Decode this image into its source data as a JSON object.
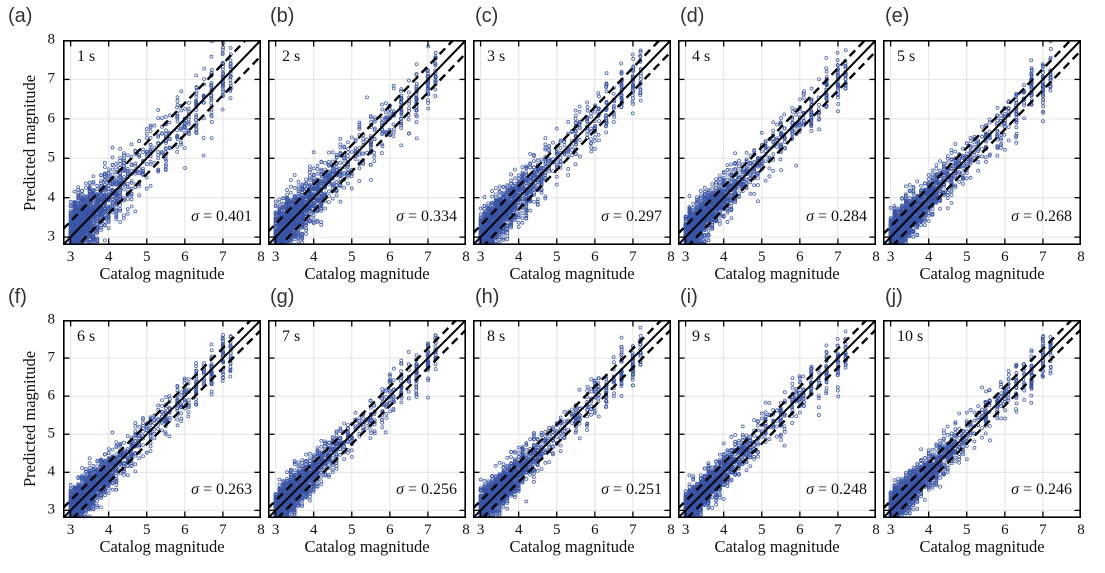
{
  "figure": {
    "background": "#ffffff",
    "description": "Predicted vs catalog magnitude scatter panels for time windows 1-10 s"
  },
  "chart_data": {
    "type": "scatter",
    "title": "",
    "xlabel": "Catalog magnitude",
    "ylabel": "Predicted magnitude",
    "xlim": [
      2.8,
      8
    ],
    "ylim": [
      2.8,
      8
    ],
    "tick_values": [
      3,
      4,
      5,
      6,
      7,
      8
    ],
    "tick_labels": [
      "3",
      "4",
      "5",
      "6",
      "7",
      "8"
    ],
    "grid": true,
    "sigma_symbol": "σ",
    "reference_lines": "solid y = x; dashed y = x ± σ",
    "colors": {
      "marker": "#3a55a6",
      "line": "#000000",
      "grid": "#e2e2e2",
      "box": "#000000",
      "text": "#111111"
    },
    "panels": [
      {
        "letter": "(a)",
        "time_label": "1 s",
        "sigma": 0.401,
        "sigma_text": " = 0.401"
      },
      {
        "letter": "(b)",
        "time_label": "2 s",
        "sigma": 0.334,
        "sigma_text": " = 0.334"
      },
      {
        "letter": "(c)",
        "time_label": "3 s",
        "sigma": 0.297,
        "sigma_text": " = 0.297"
      },
      {
        "letter": "(d)",
        "time_label": "4 s",
        "sigma": 0.284,
        "sigma_text": " = 0.284"
      },
      {
        "letter": "(e)",
        "time_label": "5 s",
        "sigma": 0.268,
        "sigma_text": " = 0.268"
      },
      {
        "letter": "(f)",
        "time_label": "6 s",
        "sigma": 0.263,
        "sigma_text": " = 0.263"
      },
      {
        "letter": "(g)",
        "time_label": "7 s",
        "sigma": 0.256,
        "sigma_text": " = 0.256"
      },
      {
        "letter": "(h)",
        "time_label": "8 s",
        "sigma": 0.251,
        "sigma_text": " = 0.251"
      },
      {
        "letter": "(i)",
        "time_label": "9 s",
        "sigma": 0.248,
        "sigma_text": " = 0.248"
      },
      {
        "letter": "(j)",
        "time_label": "10 s",
        "sigma": 0.246,
        "sigma_text": " = 0.246"
      }
    ],
    "scatter_sim": {
      "seed_base": 4242,
      "n_small": 1400,
      "x_min": 3.0,
      "x_decay": 0.68,
      "x_small_max": 5.55,
      "quantize": 0.1,
      "clusters": [
        {
          "x": 5.5,
          "n": 14
        },
        {
          "x": 5.6,
          "n": 10
        },
        {
          "x": 5.8,
          "n": 16
        },
        {
          "x": 5.9,
          "n": 10
        },
        {
          "x": 6.0,
          "n": 14
        },
        {
          "x": 6.1,
          "n": 12
        },
        {
          "x": 6.3,
          "n": 26
        },
        {
          "x": 6.5,
          "n": 12
        },
        {
          "x": 6.7,
          "n": 30
        },
        {
          "x": 7.0,
          "n": 30
        },
        {
          "x": 7.2,
          "n": 20
        }
      ]
    }
  }
}
